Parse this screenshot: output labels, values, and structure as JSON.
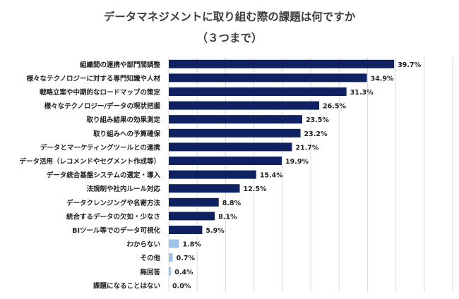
{
  "chart_data": {
    "type": "bar",
    "orientation": "horizontal",
    "title": "データマネジメントに取り組む際の課題は何ですか",
    "subtitle": "（３つまで）",
    "categories": [
      "組織間の連携や部門間調整",
      "様々なテクノロジーに対する専門知識や人材",
      "戦略立案や中期的なロードマップの策定",
      "様々なテクノロジー/データの現状把握",
      "取り組み結果の効果測定",
      "取り組みへの予算確保",
      "データとマーケティングツールとの連携",
      "データ活用（レコメンドやセグメント作成等）",
      "データ統合基盤システムの選定・導入",
      "法規制や社内ルール対応",
      "データクレンジングや名寄方法",
      "統合するデータの欠如・少なさ",
      "BIツール等でのデータ可視化",
      "わからない",
      "その他",
      "無回答",
      "課題になることはない"
    ],
    "values": [
      39.7,
      34.9,
      31.3,
      26.5,
      23.5,
      23.2,
      21.7,
      19.9,
      15.4,
      12.5,
      8.8,
      8.1,
      5.9,
      1.8,
      0.7,
      0.4,
      0.0
    ],
    "value_labels": [
      "39.7%",
      "34.9%",
      "31.3%",
      "26.5%",
      "23.5%",
      "23.2%",
      "21.7%",
      "19.9%",
      "15.4%",
      "12.5%",
      "8.8%",
      "8.1%",
      "5.9%",
      "1.8%",
      "0.7%",
      "0.4%",
      "0.0%"
    ],
    "bar_colors": [
      "#0f2160",
      "#0f2160",
      "#0f2160",
      "#0f2160",
      "#0f2160",
      "#0f2160",
      "#0f2160",
      "#0f2160",
      "#0f2160",
      "#0f2160",
      "#0f2160",
      "#0f2160",
      "#0f2160",
      "#9dc3e6",
      "#9dc3e6",
      "#9dc3e6",
      "#9dc3e6"
    ],
    "xlim": [
      0,
      50
    ],
    "grid": true,
    "legend": "none"
  }
}
